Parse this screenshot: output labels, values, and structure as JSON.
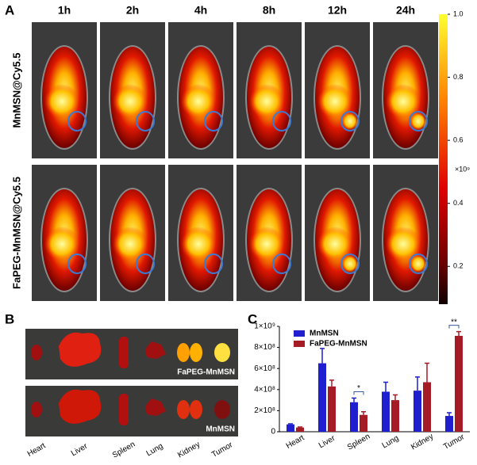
{
  "panel_a": {
    "label": "A",
    "timepoints": [
      "1h",
      "2h",
      "4h",
      "8h",
      "12h",
      "24h"
    ],
    "rows": [
      "MnMSN@Cy5.5",
      "FaPEG-MnMSN@Cy5.5"
    ],
    "colorbar": {
      "clim": [
        0.08,
        1.0
      ],
      "ticks": [
        {
          "value": 1.0,
          "label": "1.0"
        },
        0.8,
        0.6,
        0.4,
        0.2
      ],
      "unit": "×10⁹"
    }
  },
  "panel_b": {
    "label": "B",
    "groups": [
      "FaPEG-MnMSN",
      "MnMSN"
    ],
    "organs": [
      "Heart",
      "Liver",
      "Spleen",
      "Lung",
      "Kidney",
      "Tumor"
    ]
  },
  "chart_data": {
    "type": "bar",
    "label": "C",
    "categories": [
      "Heart",
      "Liver",
      "Spleen",
      "Lung",
      "Kidney",
      "Tumor"
    ],
    "series": [
      {
        "name": "MnMSN",
        "color": "#1f1fd0",
        "values": [
          70000000,
          650000000,
          280000000,
          380000000,
          390000000,
          150000000
        ],
        "errors": [
          5000000,
          140000000,
          40000000,
          90000000,
          130000000,
          30000000
        ]
      },
      {
        "name": "FaPEG-MnMSN",
        "color": "#a51c26",
        "values": [
          40000000,
          430000000,
          160000000,
          300000000,
          470000000,
          910000000
        ],
        "errors": [
          5000000,
          60000000,
          30000000,
          50000000,
          180000000,
          40000000
        ]
      }
    ],
    "ylim": [
      0,
      1000000000
    ],
    "yticks": [
      0,
      {
        "value": 200000000,
        "label": "2×10⁸"
      },
      {
        "value": 400000000,
        "label": "4×10⁸"
      },
      {
        "value": 600000000,
        "label": "6×10⁸"
      },
      {
        "value": 800000000,
        "label": "8×10⁸"
      },
      {
        "value": 1000000000,
        "label": "1×10⁹"
      }
    ],
    "annotations": [
      "*",
      "**"
    ]
  }
}
